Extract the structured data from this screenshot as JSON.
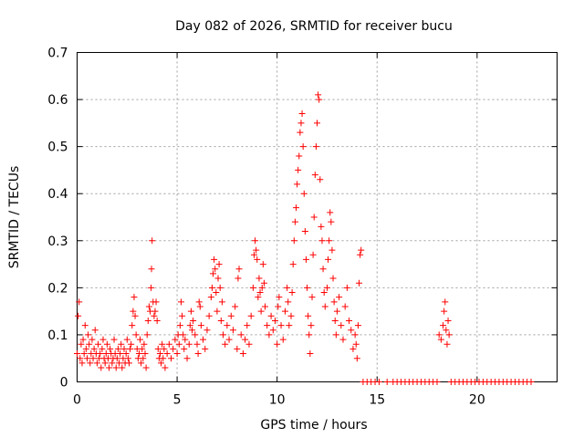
{
  "chart_data": {
    "type": "scatter",
    "title": "Day 082 of 2026, SRMTID for receiver bucu",
    "xlabel": "GPS time / hours",
    "ylabel": "SRMTID / TECUs",
    "xlim": [
      0,
      24
    ],
    "ylim": [
      0,
      0.7
    ],
    "x_ticks": [
      0,
      5,
      10,
      15,
      20
    ],
    "y_ticks": [
      0,
      0.1,
      0.2,
      0.3,
      0.4,
      0.5,
      0.6,
      0.7
    ],
    "x_tick_labels": [
      "0",
      "5",
      "10",
      "15",
      "20"
    ],
    "y_tick_labels": [
      "0",
      "0.1",
      "0.2",
      "0.3",
      "0.4",
      "0.5",
      "0.6",
      "0.7"
    ],
    "grid": true,
    "marker": "+",
    "color": "#ff0000",
    "series": [
      {
        "name": "SRMTID",
        "points": [
          [
            0.0,
            0.06
          ],
          [
            0.05,
            0.14
          ],
          [
            0.1,
            0.17
          ],
          [
            0.15,
            0.05
          ],
          [
            0.2,
            0.08
          ],
          [
            0.25,
            0.04
          ],
          [
            0.3,
            0.09
          ],
          [
            0.35,
            0.06
          ],
          [
            0.4,
            0.12
          ],
          [
            0.45,
            0.07
          ],
          [
            0.5,
            0.05
          ],
          [
            0.55,
            0.1
          ],
          [
            0.6,
            0.08
          ],
          [
            0.65,
            0.04
          ],
          [
            0.7,
            0.06
          ],
          [
            0.75,
            0.09
          ],
          [
            0.8,
            0.05
          ],
          [
            0.85,
            0.07
          ],
          [
            0.9,
            0.11
          ],
          [
            0.95,
            0.06
          ],
          [
            1.0,
            0.04
          ],
          [
            1.05,
            0.08
          ],
          [
            1.1,
            0.05
          ],
          [
            1.15,
            0.06
          ],
          [
            1.2,
            0.03
          ],
          [
            1.25,
            0.07
          ],
          [
            1.3,
            0.09
          ],
          [
            1.35,
            0.05
          ],
          [
            1.4,
            0.04
          ],
          [
            1.45,
            0.06
          ],
          [
            1.5,
            0.08
          ],
          [
            1.55,
            0.05
          ],
          [
            1.6,
            0.03
          ],
          [
            1.65,
            0.07
          ],
          [
            1.7,
            0.06
          ],
          [
            1.75,
            0.04
          ],
          [
            1.8,
            0.05
          ],
          [
            1.85,
            0.09
          ],
          [
            1.9,
            0.06
          ],
          [
            1.95,
            0.03
          ],
          [
            2.0,
            0.05
          ],
          [
            2.05,
            0.07
          ],
          [
            2.1,
            0.04
          ],
          [
            2.15,
            0.06
          ],
          [
            2.2,
            0.08
          ],
          [
            2.25,
            0.03
          ],
          [
            2.3,
            0.05
          ],
          [
            2.35,
            0.07
          ],
          [
            2.4,
            0.04
          ],
          [
            2.45,
            0.06
          ],
          [
            2.5,
            0.09
          ],
          [
            2.55,
            0.05
          ],
          [
            2.6,
            0.04
          ],
          [
            2.65,
            0.07
          ],
          [
            2.7,
            0.08
          ],
          [
            2.75,
            0.12
          ],
          [
            2.8,
            0.15
          ],
          [
            2.85,
            0.18
          ],
          [
            2.9,
            0.14
          ],
          [
            2.95,
            0.1
          ],
          [
            3.0,
            0.07
          ],
          [
            3.05,
            0.05
          ],
          [
            3.1,
            0.06
          ],
          [
            3.15,
            0.09
          ],
          [
            3.2,
            0.04
          ],
          [
            3.25,
            0.07
          ],
          [
            3.3,
            0.05
          ],
          [
            3.35,
            0.08
          ],
          [
            3.4,
            0.06
          ],
          [
            3.45,
            0.03
          ],
          [
            3.5,
            0.1
          ],
          [
            3.55,
            0.13
          ],
          [
            3.6,
            0.16
          ],
          [
            3.65,
            0.15
          ],
          [
            3.7,
            0.2
          ],
          [
            3.72,
            0.24
          ],
          [
            3.75,
            0.3
          ],
          [
            3.8,
            0.17
          ],
          [
            3.85,
            0.14
          ],
          [
            3.9,
            0.15
          ],
          [
            3.95,
            0.17
          ],
          [
            4.0,
            0.13
          ],
          [
            4.05,
            0.07
          ],
          [
            4.1,
            0.05
          ],
          [
            4.15,
            0.06
          ],
          [
            4.2,
            0.04
          ],
          [
            4.25,
            0.08
          ],
          [
            4.3,
            0.05
          ],
          [
            4.35,
            0.07
          ],
          [
            4.4,
            0.03
          ],
          [
            4.5,
            0.06
          ],
          [
            4.6,
            0.08
          ],
          [
            4.7,
            0.05
          ],
          [
            4.8,
            0.07
          ],
          [
            4.9,
            0.09
          ],
          [
            5.0,
            0.06
          ],
          [
            5.05,
            0.1
          ],
          [
            5.1,
            0.08
          ],
          [
            5.15,
            0.12
          ],
          [
            5.2,
            0.17
          ],
          [
            5.25,
            0.14
          ],
          [
            5.3,
            0.1
          ],
          [
            5.35,
            0.07
          ],
          [
            5.4,
            0.09
          ],
          [
            5.5,
            0.05
          ],
          [
            5.6,
            0.08
          ],
          [
            5.65,
            0.12
          ],
          [
            5.7,
            0.15
          ],
          [
            5.75,
            0.11
          ],
          [
            5.8,
            0.13
          ],
          [
            5.9,
            0.1
          ],
          [
            6.0,
            0.08
          ],
          [
            6.05,
            0.06
          ],
          [
            6.1,
            0.17
          ],
          [
            6.15,
            0.16
          ],
          [
            6.2,
            0.12
          ],
          [
            6.3,
            0.09
          ],
          [
            6.4,
            0.07
          ],
          [
            6.5,
            0.11
          ],
          [
            6.6,
            0.14
          ],
          [
            6.7,
            0.18
          ],
          [
            6.75,
            0.2
          ],
          [
            6.8,
            0.23
          ],
          [
            6.85,
            0.26
          ],
          [
            6.9,
            0.24
          ],
          [
            6.95,
            0.19
          ],
          [
            7.0,
            0.15
          ],
          [
            7.05,
            0.22
          ],
          [
            7.1,
            0.25
          ],
          [
            7.15,
            0.2
          ],
          [
            7.2,
            0.13
          ],
          [
            7.25,
            0.17
          ],
          [
            7.3,
            0.1
          ],
          [
            7.4,
            0.08
          ],
          [
            7.5,
            0.12
          ],
          [
            7.6,
            0.09
          ],
          [
            7.7,
            0.14
          ],
          [
            7.8,
            0.11
          ],
          [
            7.9,
            0.16
          ],
          [
            8.0,
            0.07
          ],
          [
            8.05,
            0.22
          ],
          [
            8.1,
            0.24
          ],
          [
            8.2,
            0.1
          ],
          [
            8.3,
            0.06
          ],
          [
            8.4,
            0.09
          ],
          [
            8.5,
            0.12
          ],
          [
            8.6,
            0.08
          ],
          [
            8.7,
            0.14
          ],
          [
            8.8,
            0.2
          ],
          [
            8.85,
            0.27
          ],
          [
            8.9,
            0.3
          ],
          [
            8.95,
            0.28
          ],
          [
            9.0,
            0.26
          ],
          [
            9.05,
            0.18
          ],
          [
            9.1,
            0.22
          ],
          [
            9.15,
            0.19
          ],
          [
            9.2,
            0.15
          ],
          [
            9.25,
            0.2
          ],
          [
            9.3,
            0.25
          ],
          [
            9.35,
            0.21
          ],
          [
            9.4,
            0.16
          ],
          [
            9.5,
            0.12
          ],
          [
            9.6,
            0.1
          ],
          [
            9.7,
            0.14
          ],
          [
            9.8,
            0.11
          ],
          [
            9.9,
            0.13
          ],
          [
            10.0,
            0.08
          ],
          [
            10.05,
            0.16
          ],
          [
            10.1,
            0.18
          ],
          [
            10.2,
            0.12
          ],
          [
            10.3,
            0.09
          ],
          [
            10.4,
            0.15
          ],
          [
            10.5,
            0.2
          ],
          [
            10.55,
            0.17
          ],
          [
            10.6,
            0.12
          ],
          [
            10.7,
            0.14
          ],
          [
            10.75,
            0.19
          ],
          [
            10.8,
            0.25
          ],
          [
            10.85,
            0.3
          ],
          [
            10.9,
            0.34
          ],
          [
            10.95,
            0.37
          ],
          [
            11.0,
            0.42
          ],
          [
            11.05,
            0.45
          ],
          [
            11.1,
            0.48
          ],
          [
            11.15,
            0.53
          ],
          [
            11.2,
            0.55
          ],
          [
            11.25,
            0.57
          ],
          [
            11.3,
            0.5
          ],
          [
            11.35,
            0.4
          ],
          [
            11.4,
            0.32
          ],
          [
            11.45,
            0.26
          ],
          [
            11.5,
            0.2
          ],
          [
            11.55,
            0.14
          ],
          [
            11.6,
            0.1
          ],
          [
            11.65,
            0.06
          ],
          [
            11.7,
            0.12
          ],
          [
            11.75,
            0.18
          ],
          [
            11.8,
            0.27
          ],
          [
            11.85,
            0.35
          ],
          [
            11.9,
            0.44
          ],
          [
            11.95,
            0.5
          ],
          [
            12.0,
            0.55
          ],
          [
            12.05,
            0.61
          ],
          [
            12.1,
            0.6
          ],
          [
            12.15,
            0.43
          ],
          [
            12.2,
            0.33
          ],
          [
            12.25,
            0.3
          ],
          [
            12.3,
            0.24
          ],
          [
            12.35,
            0.19
          ],
          [
            12.4,
            0.16
          ],
          [
            12.5,
            0.2
          ],
          [
            12.55,
            0.26
          ],
          [
            12.6,
            0.3
          ],
          [
            12.65,
            0.36
          ],
          [
            12.7,
            0.34
          ],
          [
            12.75,
            0.28
          ],
          [
            12.8,
            0.22
          ],
          [
            12.85,
            0.17
          ],
          [
            12.9,
            0.13
          ],
          [
            12.95,
            0.1
          ],
          [
            13.0,
            0.15
          ],
          [
            13.1,
            0.18
          ],
          [
            13.2,
            0.12
          ],
          [
            13.3,
            0.09
          ],
          [
            13.4,
            0.16
          ],
          [
            13.5,
            0.2
          ],
          [
            13.6,
            0.13
          ],
          [
            13.7,
            0.11
          ],
          [
            13.8,
            0.07
          ],
          [
            13.9,
            0.1
          ],
          [
            13.95,
            0.08
          ],
          [
            14.0,
            0.05
          ],
          [
            14.05,
            0.12
          ],
          [
            14.1,
            0.21
          ],
          [
            14.15,
            0.27
          ],
          [
            14.2,
            0.28
          ],
          [
            14.3,
            0.0
          ],
          [
            14.5,
            0.0
          ],
          [
            14.7,
            0.0
          ],
          [
            14.9,
            0.0
          ],
          [
            15.1,
            0.0
          ],
          [
            15.5,
            0.0
          ],
          [
            15.8,
            0.0
          ],
          [
            16.0,
            0.0
          ],
          [
            16.2,
            0.0
          ],
          [
            16.4,
            0.0
          ],
          [
            16.6,
            0.0
          ],
          [
            16.8,
            0.0
          ],
          [
            17.0,
            0.0
          ],
          [
            17.2,
            0.0
          ],
          [
            17.4,
            0.0
          ],
          [
            17.6,
            0.0
          ],
          [
            17.8,
            0.0
          ],
          [
            18.0,
            0.0
          ],
          [
            18.1,
            0.1
          ],
          [
            18.2,
            0.09
          ],
          [
            18.3,
            0.12
          ],
          [
            18.35,
            0.15
          ],
          [
            18.4,
            0.17
          ],
          [
            18.45,
            0.11
          ],
          [
            18.5,
            0.08
          ],
          [
            18.55,
            0.13
          ],
          [
            18.6,
            0.1
          ],
          [
            18.7,
            0.0
          ],
          [
            18.9,
            0.0
          ],
          [
            19.1,
            0.0
          ],
          [
            19.3,
            0.0
          ],
          [
            19.5,
            0.0
          ],
          [
            19.7,
            0.0
          ],
          [
            19.9,
            0.0
          ],
          [
            20.1,
            0.0
          ],
          [
            20.3,
            0.0
          ],
          [
            20.5,
            0.0
          ],
          [
            20.7,
            0.0
          ],
          [
            20.9,
            0.0
          ],
          [
            21.1,
            0.0
          ],
          [
            21.3,
            0.0
          ],
          [
            21.5,
            0.0
          ],
          [
            21.7,
            0.0
          ],
          [
            21.9,
            0.0
          ],
          [
            22.1,
            0.0
          ],
          [
            22.3,
            0.0
          ],
          [
            22.5,
            0.0
          ],
          [
            22.7,
            0.0
          ]
        ]
      }
    ]
  }
}
